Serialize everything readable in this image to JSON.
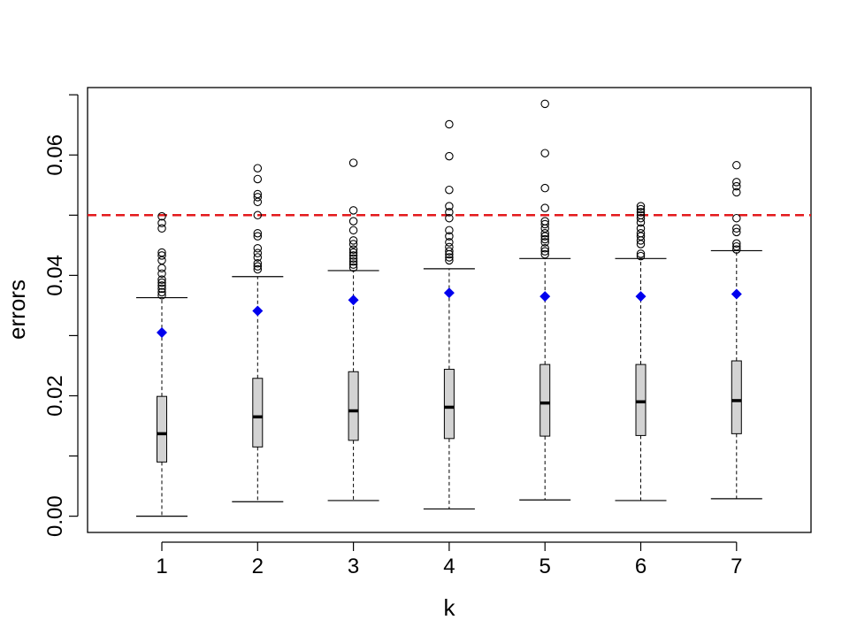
{
  "chart_data": {
    "type": "boxplot",
    "xlabel": "k",
    "ylabel": "errors",
    "ylim": [
      -0.0027,
      0.0712
    ],
    "y_ticks": [
      0.0,
      0.01,
      0.02,
      0.03,
      0.04,
      0.05,
      0.06,
      0.07
    ],
    "y_tick_labels": [
      {
        "value": 0.0,
        "label": "0.00"
      },
      {
        "value": 0.02,
        "label": "0.02"
      },
      {
        "value": 0.04,
        "label": "0.04"
      },
      {
        "value": 0.06,
        "label": "0.06"
      }
    ],
    "reference_line": {
      "value": 0.05,
      "color": "#e31a1c",
      "style": "dashed"
    },
    "box_fill": "#d3d3d3",
    "mean_color": "#0000ee",
    "grid": false,
    "categories": [
      "1",
      "2",
      "3",
      "4",
      "5",
      "6",
      "7"
    ],
    "boxes": [
      {
        "k": "1",
        "whisker_low": 0.0,
        "q1": 0.009,
        "median": 0.0137,
        "q3": 0.0199,
        "whisker_high": 0.0363,
        "mean": 0.0305,
        "outliers": [
          0.0367,
          0.0372,
          0.0378,
          0.0383,
          0.0388,
          0.0393,
          0.0403,
          0.0412,
          0.0425,
          0.0433,
          0.0438,
          0.0478,
          0.0487,
          0.0498
        ]
      },
      {
        "k": "2",
        "whisker_low": 0.0024,
        "q1": 0.0115,
        "median": 0.0165,
        "q3": 0.0229,
        "whisker_high": 0.0398,
        "mean": 0.0341,
        "outliers": [
          0.041,
          0.0415,
          0.042,
          0.043,
          0.0437,
          0.0445,
          0.0465,
          0.047,
          0.05,
          0.0522,
          0.053,
          0.0535,
          0.056,
          0.0578
        ]
      },
      {
        "k": "3",
        "whisker_low": 0.0026,
        "q1": 0.0126,
        "median": 0.0175,
        "q3": 0.024,
        "whisker_high": 0.0408,
        "mean": 0.0359,
        "outliers": [
          0.0413,
          0.0418,
          0.0423,
          0.0428,
          0.0433,
          0.0438,
          0.0443,
          0.0452,
          0.0458,
          0.0475,
          0.049,
          0.0508,
          0.0587
        ]
      },
      {
        "k": "4",
        "whisker_low": 0.0012,
        "q1": 0.0129,
        "median": 0.0181,
        "q3": 0.0244,
        "whisker_high": 0.0411,
        "mean": 0.0371,
        "outliers": [
          0.0425,
          0.043,
          0.0435,
          0.044,
          0.0447,
          0.0455,
          0.0465,
          0.0475,
          0.0495,
          0.0505,
          0.0515,
          0.0542,
          0.0598,
          0.0651
        ]
      },
      {
        "k": "5",
        "whisker_low": 0.0027,
        "q1": 0.0133,
        "median": 0.0188,
        "q3": 0.0252,
        "whisker_high": 0.0428,
        "mean": 0.0365,
        "outliers": [
          0.0435,
          0.044,
          0.0445,
          0.0455,
          0.046,
          0.0465,
          0.047,
          0.0478,
          0.0485,
          0.049,
          0.0512,
          0.0545,
          0.0603,
          0.0685
        ]
      },
      {
        "k": "6",
        "whisker_low": 0.0026,
        "q1": 0.0134,
        "median": 0.019,
        "q3": 0.0252,
        "whisker_high": 0.0428,
        "mean": 0.0365,
        "outliers": [
          0.0432,
          0.0436,
          0.0452,
          0.0458,
          0.0465,
          0.047,
          0.0478,
          0.0488,
          0.0495,
          0.05,
          0.0505,
          0.051,
          0.0515
        ]
      },
      {
        "k": "7",
        "whisker_low": 0.0029,
        "q1": 0.0137,
        "median": 0.0192,
        "q3": 0.0258,
        "whisker_high": 0.0441,
        "mean": 0.0369,
        "outliers": [
          0.0443,
          0.0448,
          0.0453,
          0.0472,
          0.0478,
          0.0495,
          0.0538,
          0.0548,
          0.0555,
          0.0583
        ]
      }
    ]
  }
}
